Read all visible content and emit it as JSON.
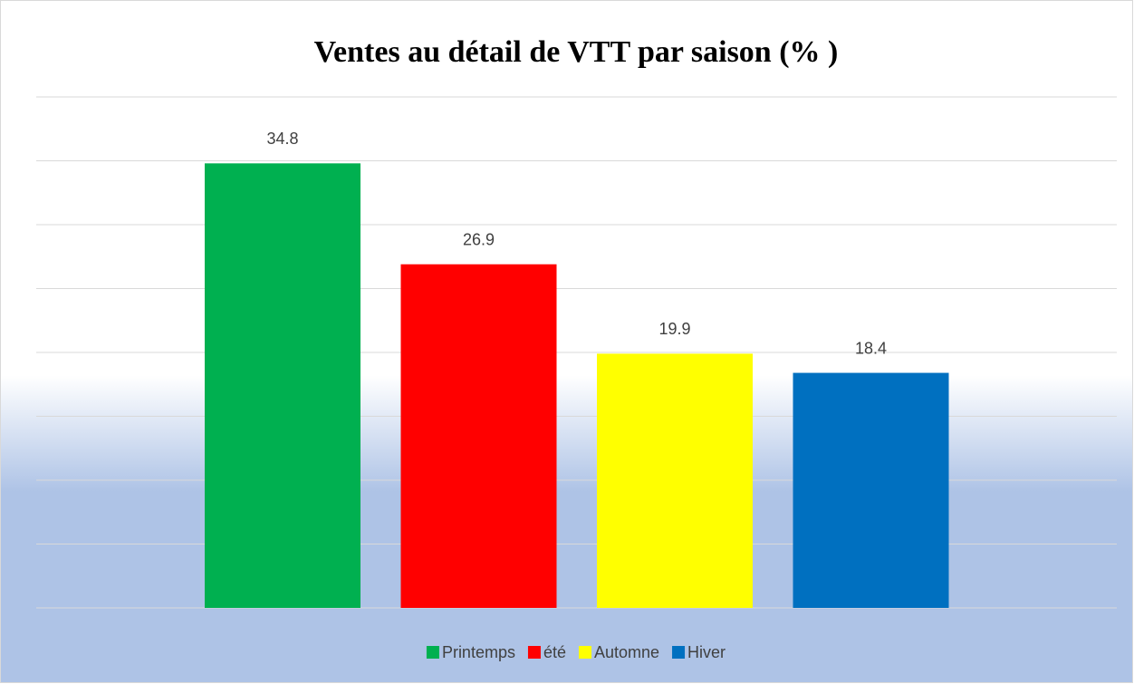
{
  "chart_data": {
    "type": "bar",
    "title": "Ventes au détail de VTT par saison (% )",
    "categories": [
      "Printemps",
      "été",
      "Automne",
      "Hiver"
    ],
    "values": [
      34.8,
      26.9,
      19.9,
      18.4
    ],
    "colors": [
      "#00b050",
      "#ff0000",
      "#ffff00",
      "#0070c0"
    ],
    "ylim": [
      0,
      40
    ],
    "yticks": [
      0,
      5,
      10,
      15,
      20,
      25,
      30,
      35,
      40
    ],
    "grid": true
  }
}
